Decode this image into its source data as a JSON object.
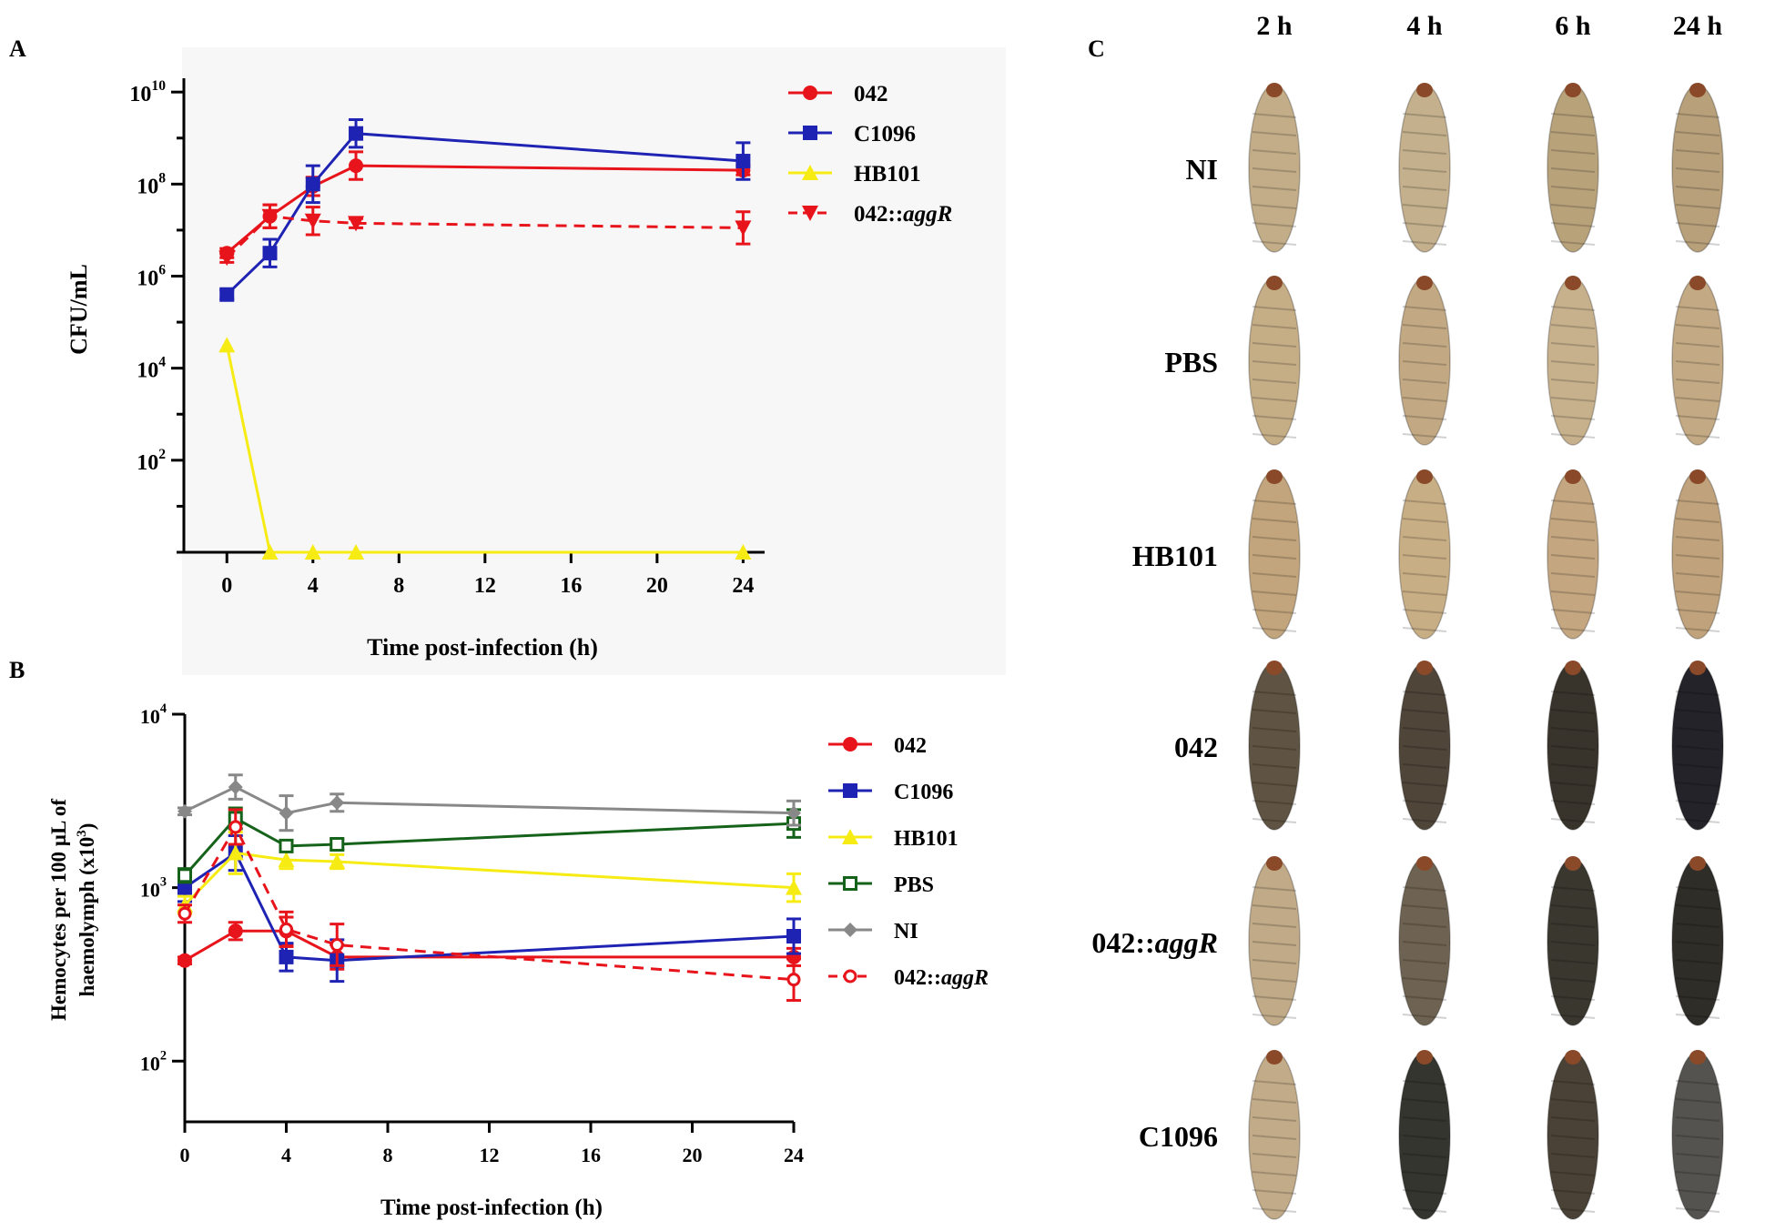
{
  "panels": {
    "a": "A",
    "b": "B",
    "c": "C"
  },
  "chart_data": [
    {
      "id": "A",
      "type": "line",
      "yscale": "log",
      "ylabel": "CFU/mL",
      "xlabel": "Time post-infection (h)",
      "xlim": [
        -2,
        25
      ],
      "ylim_log10": [
        0,
        10.3
      ],
      "xticks": [
        0,
        4,
        8,
        12,
        16,
        20,
        24
      ],
      "yticks": [
        {
          "exp": 10,
          "base": "10",
          "sup": "10"
        },
        {
          "exp": 8,
          "base": "10",
          "sup": "8"
        },
        {
          "exp": 6,
          "base": "10",
          "sup": "6"
        },
        {
          "exp": 4,
          "base": "10",
          "sup": "4"
        },
        {
          "exp": 2,
          "base": "10",
          "sup": "2"
        }
      ],
      "series": [
        {
          "name": "042",
          "legend": [
            {
              "t": "042",
              "i": false
            }
          ],
          "color": "#e8141b",
          "marker": "circle",
          "dash": false,
          "x": [
            0,
            2,
            4,
            6,
            24
          ],
          "y_log10": [
            6.5,
            7.3,
            7.95,
            8.4,
            8.3
          ],
          "err_log10": [
            0.1,
            0.25,
            0.2,
            0.3,
            0.1
          ]
        },
        {
          "name": "C1096",
          "legend": [
            {
              "t": "C1096",
              "i": false
            }
          ],
          "color": "#1f23b3",
          "marker": "square",
          "dash": false,
          "x": [
            0,
            2,
            4,
            6,
            24
          ],
          "y_log10": [
            5.6,
            6.5,
            8.0,
            9.1,
            8.5
          ],
          "err_log10": [
            0.1,
            0.3,
            0.4,
            0.3,
            0.4
          ]
        },
        {
          "name": "HB101",
          "legend": [
            {
              "t": "HB101",
              "i": false
            }
          ],
          "color": "#f6ec14",
          "marker": "triangle",
          "dash": false,
          "x": [
            0,
            2,
            4,
            6,
            24
          ],
          "y_log10": [
            4.5,
            0,
            0,
            0,
            0
          ],
          "err_log10": [
            0,
            0,
            0,
            0,
            0
          ]
        },
        {
          "name": "042::aggR",
          "legend": [
            {
              "t": "042::",
              "i": false
            },
            {
              "t": "aggR",
              "i": true
            }
          ],
          "color": "#e8141b",
          "marker": "triangle-down",
          "dash": true,
          "x": [
            0,
            2,
            4,
            6,
            24
          ],
          "y_log10": [
            6.4,
            7.3,
            7.2,
            7.15,
            7.05
          ],
          "err_log10": [
            0.1,
            0.25,
            0.3,
            0.1,
            0.35
          ]
        }
      ]
    },
    {
      "id": "B",
      "type": "line",
      "yscale": "log",
      "ylabel_line1": "Hemocytes per 100 µL of",
      "ylabel_line2": "haemolymph (x10",
      "ylabel_sup": "3",
      "ylabel_close": ")",
      "xlabel": "Time post-infection (h)",
      "xlim": [
        0,
        24
      ],
      "ylim_log10": [
        1.65,
        4.0
      ],
      "xticks": [
        0,
        4,
        8,
        12,
        16,
        20,
        24
      ],
      "yticks": [
        {
          "exp": 4,
          "base": "10",
          "sup": "4"
        },
        {
          "exp": 3,
          "base": "10",
          "sup": "3"
        },
        {
          "exp": 2,
          "base": "10",
          "sup": "2"
        }
      ],
      "series": [
        {
          "name": "042",
          "legend": [
            {
              "t": "042",
              "i": false
            }
          ],
          "color": "#e8141b",
          "marker": "circle",
          "dash": false,
          "x": [
            0,
            2,
            4,
            6,
            24
          ],
          "y_log10": [
            2.58,
            2.75,
            2.75,
            2.6,
            2.6
          ],
          "err_log10": [
            0.02,
            0.05,
            0.08,
            0.07,
            0.05
          ]
        },
        {
          "name": "C1096",
          "legend": [
            {
              "t": "C1096",
              "i": false
            }
          ],
          "color": "#1f23b3",
          "marker": "square",
          "dash": false,
          "x": [
            0,
            2,
            4,
            6,
            24
          ],
          "y_log10": [
            3.0,
            3.2,
            2.6,
            2.58,
            2.72
          ],
          "err_log10": [
            0.08,
            0.1,
            0.08,
            0.12,
            0.1
          ]
        },
        {
          "name": "HB101",
          "legend": [
            {
              "t": "HB101",
              "i": false
            }
          ],
          "color": "#f6ec14",
          "marker": "triangle",
          "dash": false,
          "x": [
            0,
            2,
            4,
            6,
            24
          ],
          "y_log10": [
            2.9,
            3.2,
            3.16,
            3.15,
            3.0
          ],
          "err_log10": [
            0.05,
            0.12,
            0.05,
            0.04,
            0.08
          ]
        },
        {
          "name": "PBS",
          "legend": [
            {
              "t": "PBS",
              "i": false
            }
          ],
          "color": "#15621a",
          "marker": "square-open",
          "dash": false,
          "x": [
            0,
            2,
            4,
            6,
            24
          ],
          "y_log10": [
            3.07,
            3.4,
            3.24,
            3.25,
            3.37
          ],
          "err_log10": [
            0.04,
            0.06,
            0.03,
            0.03,
            0.08
          ]
        },
        {
          "name": "NI",
          "legend": [
            {
              "t": "NI",
              "i": false
            }
          ],
          "color": "#888888",
          "marker": "diamond",
          "dash": false,
          "x": [
            0,
            2,
            4,
            6,
            24
          ],
          "y_log10": [
            3.44,
            3.58,
            3.43,
            3.49,
            3.43
          ],
          "err_log10": [
            0.02,
            0.07,
            0.1,
            0.05,
            0.07
          ]
        },
        {
          "name": "042::aggR",
          "legend": [
            {
              "t": "042::",
              "i": false
            },
            {
              "t": "aggR",
              "i": true
            }
          ],
          "color": "#e8141b",
          "marker": "circle-open",
          "dash": true,
          "x": [
            0,
            2,
            4,
            6,
            24
          ],
          "y_log10": [
            2.85,
            3.35,
            2.76,
            2.67,
            2.47
          ],
          "err_log10": [
            0.05,
            0.1,
            0.1,
            0.12,
            0.12
          ]
        }
      ]
    }
  ],
  "panel_c": {
    "columns": [
      "2 h",
      "4 h",
      "6 h",
      "24 h"
    ],
    "rows": [
      {
        "label": [
          {
            "t": "NI",
            "i": false
          }
        ],
        "tones": [
          "#c2ad88",
          "#c4b08d",
          "#b8a27a",
          "#b8a07a"
        ]
      },
      {
        "label": [
          {
            "t": "PBS",
            "i": false
          }
        ],
        "tones": [
          "#c5ad86",
          "#c2a983",
          "#c7b18d",
          "#c3aa84"
        ]
      },
      {
        "label": [
          {
            "t": "HB101",
            "i": false
          }
        ],
        "tones": [
          "#c2a57c",
          "#c8ae85",
          "#c4a680",
          "#c0a37c"
        ]
      },
      {
        "label": [
          {
            "t": "042",
            "i": false
          }
        ],
        "tones": [
          "#5f5443",
          "#4f4539",
          "#39342b",
          "#24232a"
        ]
      },
      {
        "label": [
          {
            "t": "042::",
            "i": false
          },
          {
            "t": "aggR",
            "i": true
          }
        ],
        "tones": [
          "#c0aa88",
          "#6e6352",
          "#3a372f",
          "#2f2d28"
        ]
      },
      {
        "label": [
          {
            "t": "C1096",
            "i": false
          }
        ],
        "tones": [
          "#c2ab89",
          "#34352f",
          "#4a4236",
          "#55534f"
        ]
      }
    ]
  }
}
